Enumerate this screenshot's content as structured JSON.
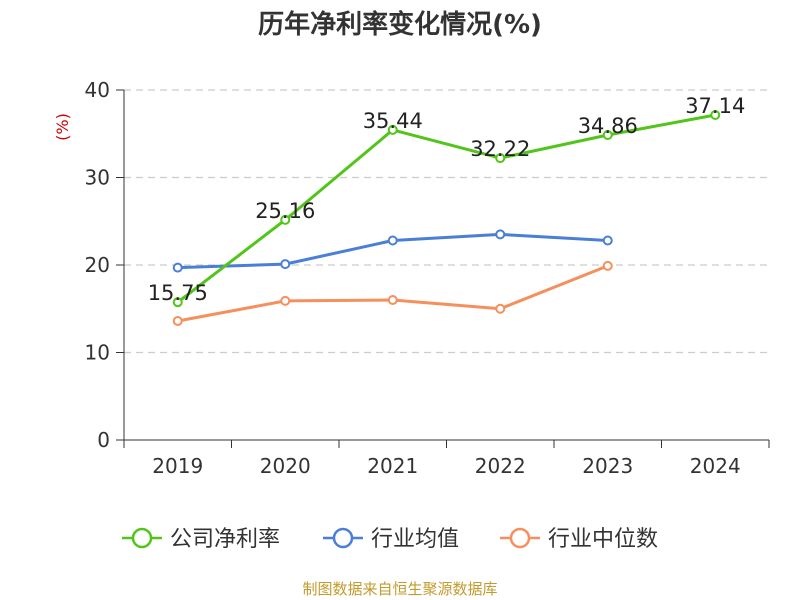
{
  "title": "历年净利率变化情况(%)",
  "source": "制图数据来自恒生聚源数据库",
  "colors": {
    "grid": "#cccccc",
    "axis": "#333333",
    "unit": "#cc0000",
    "source": "#c49a2c"
  },
  "chart_data": {
    "type": "line",
    "title": "历年净利率变化情况(%)",
    "ylabel": "(%)",
    "xlabel": "",
    "categories": [
      "2019",
      "2020",
      "2021",
      "2022",
      "2023",
      "2024"
    ],
    "ylim": [
      0,
      40
    ],
    "yticks": [
      0,
      10,
      20,
      30,
      40
    ],
    "grid": true,
    "legend_position": "bottom",
    "series": [
      {
        "name": "公司净利率",
        "color": "#52c41a",
        "values": [
          15.75,
          25.16,
          35.44,
          32.22,
          34.86,
          37.14
        ],
        "show_labels": true
      },
      {
        "name": "行业均值",
        "color": "#4a7fd8",
        "values": [
          19.7,
          20.1,
          22.8,
          23.5,
          22.8,
          null
        ],
        "show_labels": false
      },
      {
        "name": "行业中位数",
        "color": "#f58f5c",
        "values": [
          13.6,
          15.9,
          16.0,
          15.0,
          19.9,
          null
        ],
        "show_labels": false
      }
    ],
    "data_labels": [
      "15.75",
      "25.16",
      "35.44",
      "32.22",
      "34.86",
      "37.14"
    ]
  }
}
